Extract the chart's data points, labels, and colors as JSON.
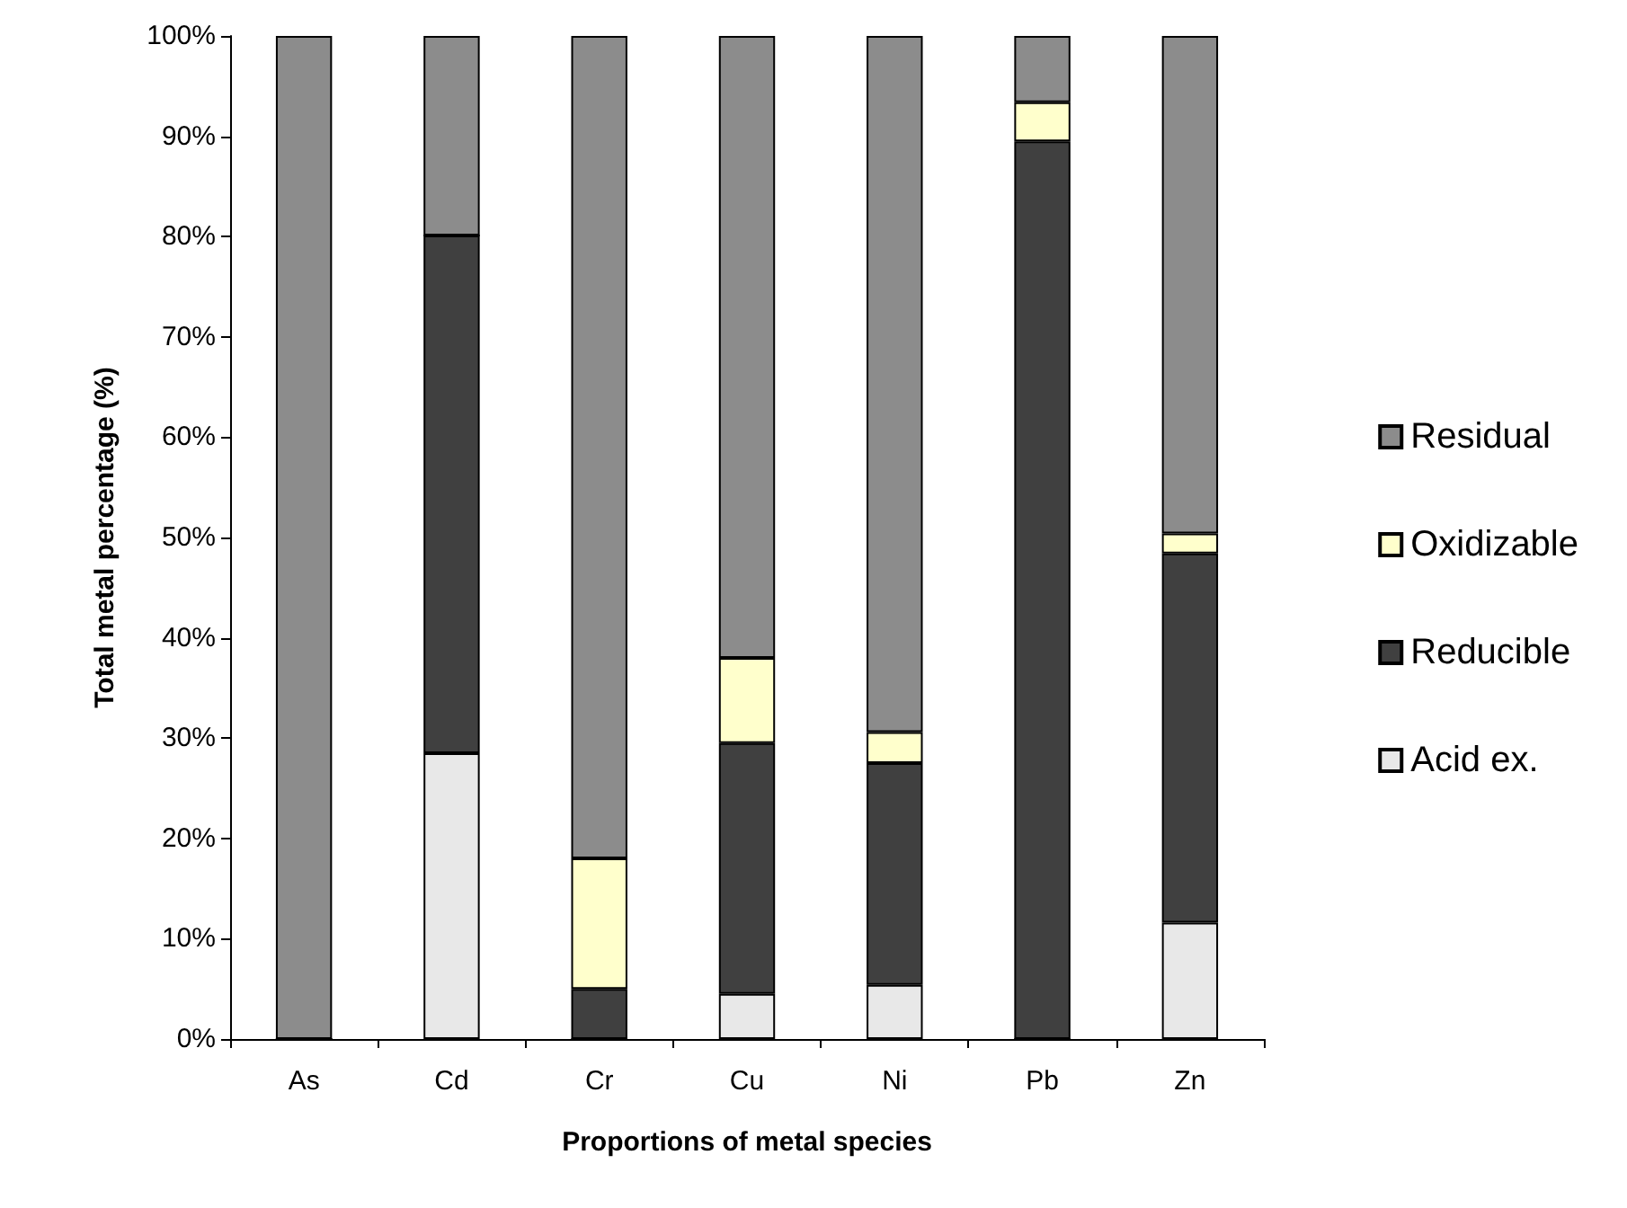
{
  "chart_data": {
    "type": "bar",
    "stacked": true,
    "xlabel": "Proportions of metal species",
    "ylabel": "Total metal percentage (%)",
    "categories": [
      "As",
      "Cd",
      "Cr",
      "Cu",
      "Ni",
      "Pb",
      "Zn"
    ],
    "series": [
      {
        "name": "Acid ex.",
        "color": "#e8e8e8",
        "values": [
          0,
          28.5,
          0,
          4.5,
          5.4,
          0,
          11.6
        ]
      },
      {
        "name": "Reducible",
        "color": "#404040",
        "values": [
          0,
          51.6,
          5,
          25,
          22.1,
          89.5,
          36.8
        ]
      },
      {
        "name": "Oxidizable",
        "color": "#ffffcc",
        "values": [
          0,
          0,
          13,
          8.5,
          3.1,
          3.9,
          2
        ]
      },
      {
        "name": "Residual",
        "color": "#8c8c8c",
        "values": [
          100,
          19.9,
          82,
          62,
          69.4,
          6.6,
          49.6
        ]
      }
    ],
    "ylim": [
      0,
      100
    ],
    "yticks": [
      {
        "value": 0,
        "label": "0%"
      },
      {
        "value": 10,
        "label": "10%"
      },
      {
        "value": 20,
        "label": "20%"
      },
      {
        "value": 30,
        "label": "30%"
      },
      {
        "value": 40,
        "label": "40%"
      },
      {
        "value": 50,
        "label": "50%"
      },
      {
        "value": 60,
        "label": "60%"
      },
      {
        "value": 70,
        "label": "70%"
      },
      {
        "value": 80,
        "label": "80%"
      },
      {
        "value": 90,
        "label": "90%"
      },
      {
        "value": 100,
        "label": "100%"
      }
    ],
    "grid": false,
    "legend": "right"
  }
}
